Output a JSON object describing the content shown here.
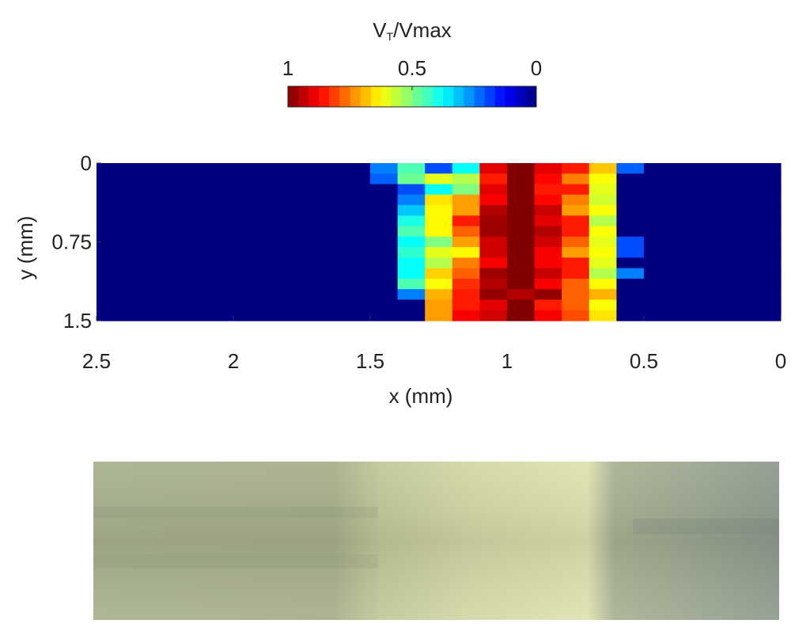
{
  "chart_data": {
    "type": "heatmap",
    "colormap": "jet",
    "colorbar": {
      "label_main": "V",
      "label_sub": "T",
      "label_rest": "/Vmax",
      "clim": [
        1,
        0
      ],
      "ticks": [
        1,
        0.5,
        0
      ]
    },
    "xlabel": "x (mm)",
    "ylabel": "y (mm)",
    "xlim": [
      2.5,
      0
    ],
    "xticks": [
      2.5,
      2,
      1.5,
      1,
      0.5,
      0
    ],
    "ylim": [
      0,
      1.5
    ],
    "yticks": [
      0,
      0.75,
      1.5
    ],
    "z": [
      [
        0,
        0,
        0,
        0,
        0,
        0,
        0,
        0,
        0,
        0,
        0.25,
        0.45,
        0.2,
        0.38,
        0.9,
        1,
        0.9,
        0.85,
        0.68,
        0.22,
        0,
        0,
        0,
        0,
        0
      ],
      [
        0,
        0,
        0,
        0,
        0,
        0,
        0,
        0,
        0,
        0,
        0.22,
        0.48,
        0.6,
        0.55,
        0.85,
        1,
        0.87,
        0.75,
        0.62,
        0,
        0,
        0,
        0,
        0,
        0
      ],
      [
        0,
        0,
        0,
        0,
        0,
        0,
        0,
        0,
        0,
        0,
        0,
        0.2,
        0.38,
        0.5,
        0.9,
        1,
        0.85,
        0.85,
        0.6,
        0,
        0,
        0,
        0,
        0,
        0
      ],
      [
        0,
        0,
        0,
        0,
        0,
        0,
        0,
        0,
        0,
        0,
        0,
        0.25,
        0.65,
        0.72,
        0.88,
        1,
        0.87,
        0.75,
        0.58,
        0,
        0,
        0,
        0,
        0,
        0
      ],
      [
        0,
        0,
        0,
        0,
        0,
        0,
        0,
        0,
        0,
        0,
        0,
        0.32,
        0.63,
        0.72,
        0.95,
        1,
        0.93,
        0.72,
        0.62,
        0,
        0,
        0,
        0,
        0,
        0
      ],
      [
        0,
        0,
        0,
        0,
        0,
        0,
        0,
        0,
        0,
        0,
        0,
        0.4,
        0.63,
        0.85,
        0.97,
        1,
        0.9,
        0.85,
        0.55,
        0,
        0,
        0,
        0,
        0,
        0
      ],
      [
        0,
        0,
        0,
        0,
        0,
        0,
        0,
        0,
        0,
        0,
        0,
        0.45,
        0.63,
        0.78,
        0.97,
        1,
        0.95,
        0.85,
        0.62,
        0,
        0,
        0,
        0,
        0,
        0
      ],
      [
        0,
        0,
        0,
        0,
        0,
        0,
        0,
        0,
        0,
        0,
        0,
        0.38,
        0.5,
        0.72,
        0.92,
        1,
        0.92,
        0.78,
        0.6,
        0.2,
        0,
        0,
        0,
        0,
        0
      ],
      [
        0,
        0,
        0,
        0,
        0,
        0,
        0,
        0,
        0,
        0,
        0,
        0.42,
        0.6,
        0.63,
        0.92,
        1,
        0.88,
        0.72,
        0.62,
        0.2,
        0,
        0,
        0,
        0,
        0
      ],
      [
        0,
        0,
        0,
        0,
        0,
        0,
        0,
        0,
        0,
        0,
        0,
        0.38,
        0.55,
        0.75,
        0.88,
        1,
        0.88,
        0.85,
        0.6,
        0,
        0,
        0,
        0,
        0,
        0
      ],
      [
        0,
        0,
        0,
        0,
        0,
        0,
        0,
        0,
        0,
        0,
        0,
        0.38,
        0.67,
        0.78,
        0.97,
        1,
        0.93,
        0.85,
        0.55,
        0.25,
        0,
        0,
        0,
        0,
        0
      ],
      [
        0,
        0,
        0,
        0,
        0,
        0,
        0,
        0,
        0,
        0,
        0,
        0.45,
        0.62,
        0.83,
        0.95,
        1,
        0.88,
        0.78,
        0.63,
        0,
        0,
        0,
        0,
        0,
        0
      ],
      [
        0,
        0,
        0,
        0,
        0,
        0,
        0,
        0,
        0,
        0,
        0,
        0.25,
        0.7,
        0.85,
        0.98,
        0.95,
        0.98,
        0.78,
        0.7,
        0,
        0,
        0,
        0,
        0,
        0
      ],
      [
        0,
        0,
        0,
        0,
        0,
        0,
        0,
        0,
        0,
        0,
        0,
        0,
        0.72,
        0.85,
        0.9,
        1,
        0.85,
        0.78,
        0.62,
        0,
        0,
        0,
        0,
        0,
        0
      ],
      [
        0,
        0,
        0,
        0,
        0,
        0,
        0,
        0,
        0,
        0,
        0,
        0,
        0.72,
        0.88,
        0.92,
        1,
        0.88,
        0.8,
        0.65,
        0,
        0,
        0,
        0,
        0,
        0
      ]
    ]
  }
}
